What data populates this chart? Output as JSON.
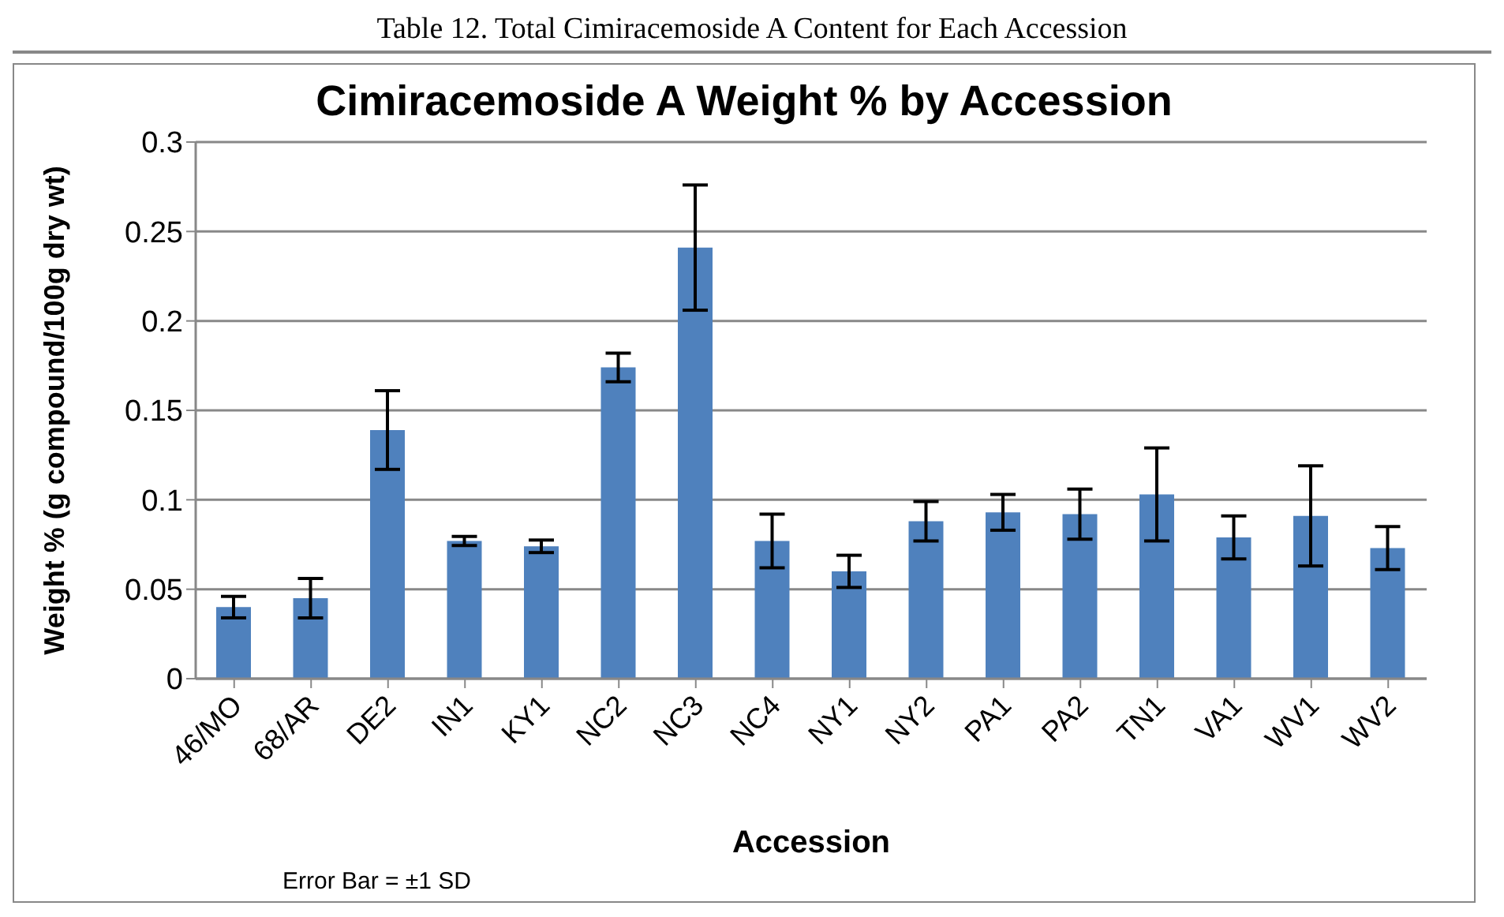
{
  "chart_data": {
    "type": "bar",
    "title": "Cimiracemoside A Weight % by Accession",
    "xlabel": "Accession",
    "ylabel": "Weight %  (g compound/100g dry wt)",
    "annotations": [
      "Table 12. Total Cimiracemoside A Content for Each Accession",
      "Error Bar = ±1 SD"
    ],
    "categories": [
      "46/MO",
      "68/AR",
      "DE2",
      "IN1",
      "KY1",
      "NC2",
      "NC3",
      "NC4",
      "NY1",
      "NY2",
      "PA1",
      "PA2",
      "TN1",
      "VA1",
      "WV1",
      "WV2"
    ],
    "values": [
      0.04,
      0.045,
      0.139,
      0.077,
      0.074,
      0.174,
      0.241,
      0.077,
      0.06,
      0.088,
      0.093,
      0.092,
      0.103,
      0.079,
      0.091,
      0.073
    ],
    "errors": [
      0.006,
      0.011,
      0.022,
      0.0025,
      0.0035,
      0.008,
      0.035,
      0.015,
      0.009,
      0.011,
      0.01,
      0.014,
      0.026,
      0.012,
      0.028,
      0.012
    ],
    "color": "#4f81bd",
    "ylim": [
      0,
      0.3
    ],
    "yticks": [
      0,
      0.05,
      0.1,
      0.15,
      0.2,
      0.25,
      0.3
    ],
    "grid": "y"
  }
}
